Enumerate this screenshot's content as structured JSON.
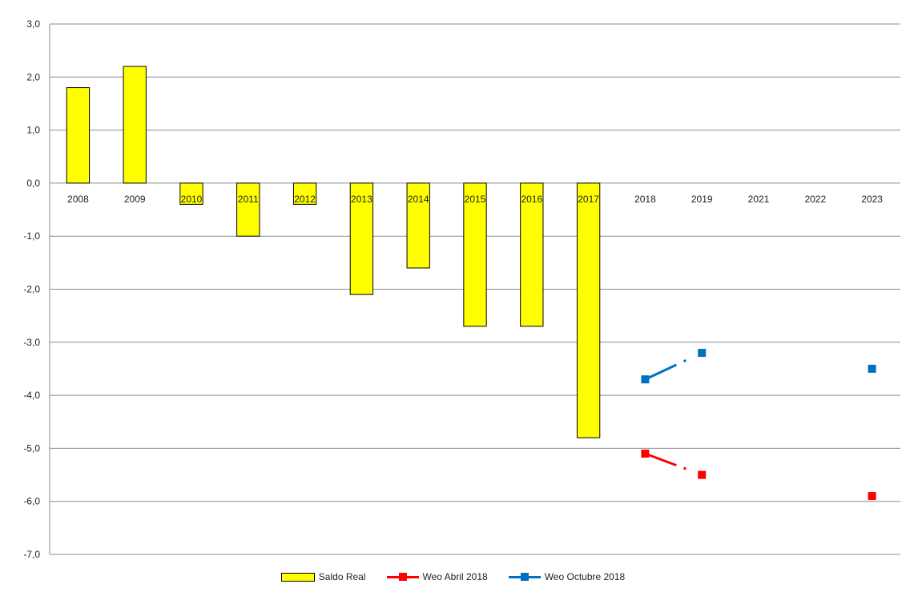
{
  "chart_data": {
    "type": "bar",
    "categories": [
      "2008",
      "2009",
      "2010",
      "2011",
      "2012",
      "2013",
      "2014",
      "2015",
      "2016",
      "2017",
      "2018",
      "2019",
      "2021",
      "2022",
      "2023"
    ],
    "yticks": [
      "3,0",
      "2,0",
      "1,0",
      "0,0",
      "-1,0",
      "-2,0",
      "-3,0",
      "-4,0",
      "-5,0",
      "-6,0",
      "-7,0"
    ],
    "ylim": [
      -7,
      3
    ],
    "grid": true,
    "legend_position": "bottom",
    "series": [
      {
        "name": "Saldo Real",
        "kind": "bar",
        "color": "#ffff00",
        "values": [
          1.8,
          2.2,
          -0.4,
          -1.0,
          -0.4,
          -2.1,
          -1.6,
          -2.7,
          -2.7,
          -4.8,
          null,
          null,
          null,
          null,
          null
        ]
      },
      {
        "name": "Weo Abril 2018",
        "kind": "line",
        "color": "#ff0000",
        "values": [
          null,
          null,
          null,
          null,
          null,
          null,
          null,
          null,
          null,
          null,
          -5.1,
          -5.5,
          null,
          null,
          -5.9
        ]
      },
      {
        "name": "Weo Octubre 2018",
        "kind": "line",
        "color": "#0070c0",
        "values": [
          null,
          null,
          null,
          null,
          null,
          null,
          null,
          null,
          null,
          null,
          -3.7,
          -3.2,
          null,
          null,
          -3.5
        ]
      }
    ]
  }
}
